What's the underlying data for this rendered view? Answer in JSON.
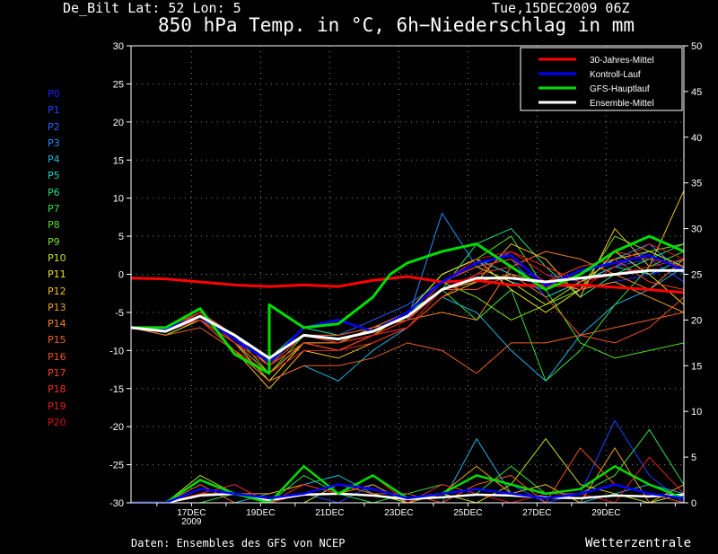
{
  "header": {
    "location": "De_Bilt   Lat: 52 Lon: 5",
    "run": "Tue,15DEC2009 06Z",
    "title": "850 hPa Temp. in °C, 6h−Niederschlag in mm"
  },
  "footer": {
    "source": "Daten: Ensembles des GFS von NCEP",
    "brand": "Wetterzentrale"
  },
  "members": [
    {
      "label": "P0",
      "color": "#2020ff"
    },
    {
      "label": "P1",
      "color": "#2040ff"
    },
    {
      "label": "P2",
      "color": "#2860ff"
    },
    {
      "label": "P3",
      "color": "#2090ff"
    },
    {
      "label": "P4",
      "color": "#20b0e0"
    },
    {
      "label": "P5",
      "color": "#20d0c0"
    },
    {
      "label": "P6",
      "color": "#20e080"
    },
    {
      "label": "P7",
      "color": "#30e040"
    },
    {
      "label": "P8",
      "color": "#50e020"
    },
    {
      "label": "P9",
      "color": "#80e020"
    },
    {
      "label": "P10",
      "color": "#c0e020"
    },
    {
      "label": "P11",
      "color": "#e8e020"
    },
    {
      "label": "P12",
      "color": "#f0c020"
    },
    {
      "label": "P13",
      "color": "#f0a020"
    },
    {
      "label": "P14",
      "color": "#f08020"
    },
    {
      "label": "P15",
      "color": "#f06020"
    },
    {
      "label": "P16",
      "color": "#f05020"
    },
    {
      "label": "P17",
      "color": "#f04020"
    },
    {
      "label": "P18",
      "color": "#f03020"
    },
    {
      "label": "P19",
      "color": "#e82020"
    },
    {
      "label": "P20",
      "color": "#e01010"
    }
  ],
  "chart_data": {
    "type": "line",
    "x_start": "2009-12-15T06:00Z",
    "x_end": "2009-12-31T06:00Z",
    "x_ticks": [
      {
        "date": "2009-12-17",
        "label": "17DEC",
        "sublabel": "2009"
      },
      {
        "date": "2009-12-19",
        "label": "19DEC",
        "sublabel": ""
      },
      {
        "date": "2009-12-21",
        "label": "21DEC",
        "sublabel": ""
      },
      {
        "date": "2009-12-23",
        "label": "23DEC",
        "sublabel": ""
      },
      {
        "date": "2009-12-25",
        "label": "25DEC",
        "sublabel": ""
      },
      {
        "date": "2009-12-27",
        "label": "27DEC",
        "sublabel": ""
      },
      {
        "date": "2009-12-29",
        "label": "29DEC",
        "sublabel": ""
      }
    ],
    "y_left": {
      "range": [
        -30,
        30
      ],
      "ticks": [
        30,
        25,
        20,
        15,
        10,
        5,
        0,
        -5,
        -10,
        -15,
        -20,
        -25,
        -30
      ]
    },
    "y_right": {
      "range": [
        0,
        50
      ],
      "ticks": [
        50,
        45,
        40,
        35,
        30,
        25,
        20,
        15,
        10,
        5,
        0
      ]
    },
    "grid": true,
    "legend_position": "top-right",
    "series": [
      {
        "name": "30-Jahres-Mittel",
        "color": "#ff0000",
        "width": 3,
        "points": [
          [
            "2009-12-15T06:00Z",
            -0.5
          ],
          [
            "2009-12-16T06:00Z",
            -0.6
          ],
          [
            "2009-12-17T06:00Z",
            -1.0
          ],
          [
            "2009-12-18T06:00Z",
            -1.4
          ],
          [
            "2009-12-19T06:00Z",
            -1.6
          ],
          [
            "2009-12-20T06:00Z",
            -1.4
          ],
          [
            "2009-12-21T06:00Z",
            -1.6
          ],
          [
            "2009-12-22T06:00Z",
            -0.8
          ],
          [
            "2009-12-23T06:00Z",
            -0.3
          ],
          [
            "2009-12-24T06:00Z",
            -1.0
          ],
          [
            "2009-12-25T06:00Z",
            -0.8
          ],
          [
            "2009-12-26T06:00Z",
            -1.4
          ],
          [
            "2009-12-27T06:00Z",
            -1.5
          ],
          [
            "2009-12-28T06:00Z",
            -1.4
          ],
          [
            "2009-12-29T06:00Z",
            -1.7
          ],
          [
            "2009-12-30T06:00Z",
            -2.0
          ],
          [
            "2009-12-31T06:00Z",
            -2.4
          ]
        ]
      },
      {
        "name": "Kontroll-Lauf",
        "color": "#0000ff",
        "width": 2.5,
        "points": [
          [
            "2009-12-15T06:00Z",
            -7.0
          ],
          [
            "2009-12-16T06:00Z",
            -7.2
          ],
          [
            "2009-12-17T06:00Z",
            -5.5
          ],
          [
            "2009-12-18T06:00Z",
            -8.5
          ],
          [
            "2009-12-19T06:00Z",
            -11.5
          ],
          [
            "2009-12-20T06:00Z",
            -7.0
          ],
          [
            "2009-12-21T06:00Z",
            -6.0
          ],
          [
            "2009-12-22T06:00Z",
            -7.5
          ],
          [
            "2009-12-23T06:00Z",
            -5.0
          ],
          [
            "2009-12-24T06:00Z",
            -1.0
          ],
          [
            "2009-12-25T06:00Z",
            1.5
          ],
          [
            "2009-12-26T06:00Z",
            2.5
          ],
          [
            "2009-12-27T06:00Z",
            -1.5
          ],
          [
            "2009-12-28T06:00Z",
            0.5
          ],
          [
            "2009-12-29T06:00Z",
            1.5
          ],
          [
            "2009-12-30T06:00Z",
            2.5
          ],
          [
            "2009-12-31T06:00Z",
            0.5
          ]
        ]
      },
      {
        "name": "GFS-Hauptlauf",
        "color": "#00dd00",
        "width": 3,
        "points": [
          [
            "2009-12-15T06:00Z",
            -7.0
          ],
          [
            "2009-12-16T06:00Z",
            -7.0
          ],
          [
            "2009-12-17T06:00Z",
            -4.5
          ],
          [
            "2009-12-18T06:00Z",
            -10.5
          ],
          [
            "2009-12-19T06:00Z",
            -13.0
          ],
          [
            "2009-12-19T06:00Z",
            -4.0
          ],
          [
            "2009-12-20T06:00Z",
            -7.0
          ],
          [
            "2009-12-21T06:00Z",
            -6.5
          ],
          [
            "2009-12-22T06:00Z",
            -3.0
          ],
          [
            "2009-12-22T18:00Z",
            0.0
          ],
          [
            "2009-12-23T06:00Z",
            1.5
          ],
          [
            "2009-12-24T06:00Z",
            3.0
          ],
          [
            "2009-12-25T06:00Z",
            4.0
          ],
          [
            "2009-12-26T06:00Z",
            1.0
          ],
          [
            "2009-12-27T06:00Z",
            -2.0
          ],
          [
            "2009-12-28T06:00Z",
            0.0
          ],
          [
            "2009-12-29T06:00Z",
            3.0
          ],
          [
            "2009-12-30T06:00Z",
            5.0
          ],
          [
            "2009-12-31T06:00Z",
            3.0
          ]
        ]
      },
      {
        "name": "Ensemble-Mittel",
        "color": "#ffffff",
        "width": 3,
        "points": [
          [
            "2009-12-15T06:00Z",
            -7.0
          ],
          [
            "2009-12-16T06:00Z",
            -7.5
          ],
          [
            "2009-12-17T06:00Z",
            -5.5
          ],
          [
            "2009-12-18T06:00Z",
            -8.0
          ],
          [
            "2009-12-19T06:00Z",
            -11.0
          ],
          [
            "2009-12-20T06:00Z",
            -8.0
          ],
          [
            "2009-12-21T06:00Z",
            -8.5
          ],
          [
            "2009-12-22T06:00Z",
            -7.5
          ],
          [
            "2009-12-23T06:00Z",
            -5.5
          ],
          [
            "2009-12-24T06:00Z",
            -2.0
          ],
          [
            "2009-12-25T06:00Z",
            -0.5
          ],
          [
            "2009-12-26T06:00Z",
            -0.5
          ],
          [
            "2009-12-27T06:00Z",
            -1.0
          ],
          [
            "2009-12-28T06:00Z",
            -0.5
          ],
          [
            "2009-12-29T06:00Z",
            0.0
          ],
          [
            "2009-12-30T06:00Z",
            0.5
          ],
          [
            "2009-12-31T06:00Z",
            0.5
          ]
        ]
      }
    ],
    "ensemble_members": [
      [
        -7,
        -7.5,
        -6,
        -9,
        -12,
        -8,
        -9,
        -8,
        -6,
        -2,
        0,
        1,
        -1,
        -2,
        -1,
        0,
        1
      ],
      [
        -7,
        -7.5,
        -5,
        -9,
        -11,
        -8,
        -8,
        -7,
        -5,
        -1,
        1,
        3,
        0,
        -1,
        1,
        2,
        -1
      ],
      [
        -7,
        -7,
        -6,
        -8,
        -12,
        -7,
        -8,
        -6,
        -4,
        -1,
        1,
        2,
        -3,
        -1,
        1,
        3,
        1
      ],
      [
        -7,
        -7,
        -5,
        -9,
        -13,
        -9,
        -9,
        -8,
        -6,
        8,
        1,
        -1,
        -2,
        0,
        2,
        4,
        0
      ],
      [
        -7,
        -7.5,
        -6,
        -10,
        -14,
        -12,
        -14,
        -10,
        -7,
        -3,
        -5,
        -10,
        -14,
        -8,
        -4,
        -2,
        1
      ],
      [
        -7,
        -8,
        -6,
        -9,
        -12,
        -8,
        -9,
        -7,
        -5,
        0,
        2,
        0,
        -3,
        -1,
        1,
        0,
        2
      ],
      [
        -7,
        -7,
        -5,
        -8,
        -11,
        -7,
        -8,
        -7,
        -5,
        -2,
        4,
        6,
        1,
        -3,
        0,
        2,
        4
      ],
      [
        -7,
        -7,
        -6,
        -9,
        -12,
        -9,
        -9,
        -8,
        -5,
        -2,
        -6,
        -2,
        -14,
        -10,
        -4,
        1,
        3
      ],
      [
        -7,
        -7.5,
        -5,
        -8,
        -13,
        -8,
        -8,
        -7,
        -5,
        0,
        2,
        5,
        -2,
        -9,
        -11,
        -10,
        -9
      ],
      [
        -7,
        -7,
        -6,
        -9,
        -12,
        -9,
        -9,
        -7,
        -5,
        -1,
        -3,
        -6,
        -4,
        -2,
        5,
        3,
        4
      ],
      [
        -7,
        -8,
        -6,
        -10,
        -13,
        -9,
        -9,
        -8,
        -6,
        -1,
        1,
        -1,
        -4,
        -1,
        2,
        3,
        1
      ],
      [
        -7,
        -7.5,
        -5,
        -9,
        -14,
        -9,
        -10,
        -8,
        -5,
        0,
        2,
        -2,
        -5,
        -2,
        3,
        0,
        -4
      ],
      [
        -7,
        -7,
        -6,
        -10,
        -15,
        -10,
        -11,
        -9,
        -7,
        -3,
        -1,
        4,
        2,
        -3,
        6,
        1,
        11
      ],
      [
        -7,
        -7,
        -5,
        -8,
        -12,
        -8,
        -9,
        -7,
        -6,
        -2,
        -1,
        0,
        -1,
        -2,
        -1,
        -3,
        -5
      ],
      [
        -7,
        -7.5,
        -6,
        -9,
        -13,
        -9,
        -10,
        -8,
        -6,
        -5,
        -6,
        1,
        3,
        2,
        0,
        -2,
        2
      ],
      [
        -7,
        -8,
        -7,
        -10,
        -14,
        -12,
        -12,
        -11,
        -9,
        -10,
        -13,
        -9,
        -9,
        -8,
        -7,
        -6,
        -5
      ],
      [
        -7,
        -7,
        -6,
        -9,
        -12,
        -9,
        -9,
        -8,
        -6,
        -2,
        -2,
        0,
        -3,
        -8,
        -9,
        -7,
        -3
      ],
      [
        -7,
        -7.5,
        -5,
        -8,
        -11,
        -8,
        -8,
        -7,
        -5,
        -1,
        1,
        2,
        -1,
        1,
        2,
        -1,
        -2
      ],
      [
        -7,
        -7,
        -6,
        -9,
        -12,
        -9,
        -10,
        -8,
        -7,
        -3,
        0,
        1,
        -2,
        0,
        3,
        2,
        1
      ],
      [
        -7,
        -7.5,
        -6,
        -10,
        -13,
        -10,
        -10,
        -9,
        -7,
        -2,
        0,
        3,
        1,
        -1,
        0,
        1,
        2
      ],
      [
        -7,
        -7,
        -5,
        -9,
        -12,
        -8,
        -9,
        -8,
        -6,
        -1,
        2,
        3,
        0,
        -2,
        1,
        4,
        2
      ]
    ],
    "precip_series": [
      {
        "name": "Ensemble-Mittel",
        "color": "#ffffff",
        "values": [
          0,
          0,
          0.8,
          1.0,
          0.3,
          0.9,
          1.0,
          0.8,
          0.4,
          0.6,
          0.9,
          0.8,
          0.6,
          0.5,
          0.8,
          0.7,
          0.9
        ]
      },
      {
        "name": "GFS-Hauptlauf",
        "color": "#00dd00",
        "values": [
          0,
          0,
          2.5,
          1.0,
          0,
          4.0,
          1.0,
          3.0,
          0.5,
          1.0,
          3.0,
          2.0,
          1.0,
          1.5,
          4.0,
          2.0,
          0.5
        ]
      },
      {
        "name": "Kontroll-Lauf",
        "color": "#0000ff",
        "values": [
          0,
          0,
          1.5,
          1.0,
          0.5,
          1.0,
          2.0,
          1.5,
          0.5,
          1.0,
          1.5,
          1.0,
          0.5,
          1.0,
          2.0,
          1.0,
          0.5
        ]
      }
    ],
    "precip_members": [
      [
        0,
        0,
        1,
        2,
        0,
        1,
        0,
        2,
        0,
        1,
        3,
        2,
        0,
        1,
        9,
        3,
        0
      ],
      [
        0,
        0,
        2,
        0,
        1,
        2,
        3,
        1,
        0,
        0,
        7,
        1,
        2,
        0,
        1,
        2,
        1
      ],
      [
        0,
        0,
        0,
        1,
        0,
        3,
        1,
        0,
        1,
        2,
        1,
        4,
        1,
        1,
        3,
        8,
        2
      ],
      [
        0,
        0,
        3,
        1,
        0,
        0,
        2,
        1,
        0,
        1,
        0,
        2,
        7,
        2,
        1,
        0,
        1
      ],
      [
        0,
        0,
        1,
        1,
        1,
        2,
        1,
        2,
        0,
        1,
        4,
        1,
        2,
        0,
        6,
        0,
        2
      ],
      [
        0,
        0,
        2,
        0,
        0,
        1,
        2,
        1,
        1,
        0,
        2,
        3,
        0,
        6,
        2,
        1,
        0
      ],
      [
        0,
        0,
        1,
        2,
        0,
        2,
        1,
        3,
        0,
        2,
        1,
        0,
        1,
        1,
        0,
        5,
        1
      ]
    ]
  }
}
